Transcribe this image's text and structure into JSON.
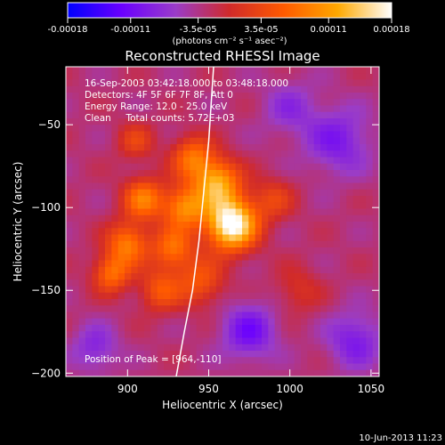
{
  "colorbar": {
    "tick_labels": [
      "-0.00018",
      "-0.00011",
      "-3.5e-05",
      "3.5e-05",
      "0.00011",
      "0.00018"
    ],
    "units_label": "(photons cm⁻² s⁻¹ asec⁻²)",
    "range": [
      -0.00018,
      0.00018
    ],
    "colors": [
      "#0000ff",
      "#6a00ff",
      "#9a3cc8",
      "#d02a2a",
      "#ff5a00",
      "#ffa800",
      "#ffffff"
    ]
  },
  "chart_data": {
    "type": "heatmap",
    "title": "Reconstructed RHESSI Image",
    "xlabel": "Heliocentric X (arcsec)",
    "ylabel": "Heliocentric Y (arcsec)",
    "xlim": [
      862,
      1055
    ],
    "ylim": [
      -202,
      -15
    ],
    "x_ticks": [
      900,
      950,
      1000,
      1050
    ],
    "y_ticks": [
      -50,
      -100,
      -150,
      -200
    ],
    "annotations": [
      "16-Sep-2003 03:42:18.000 to 03:48:18.000",
      "Detectors: 4F 5F 6F 7F 8F, Att 0",
      "Energy Range: 12.0 - 25.0 keV",
      "Clean     Total counts: 5.72E+03"
    ],
    "peak_label": "Position of Peak = [964,-110]",
    "peak": [
      964,
      -110
    ],
    "limb_curve": [
      [
        930,
        -202
      ],
      [
        935,
        -175
      ],
      [
        940,
        -150
      ],
      [
        944,
        -120
      ],
      [
        947,
        -90
      ],
      [
        950,
        -60
      ],
      [
        953,
        -15
      ]
    ],
    "sources": [
      {
        "x": 964,
        "y": -110,
        "amp": 1.0,
        "sigma": 11
      },
      {
        "x": 955,
        "y": -85,
        "amp": 0.65,
        "sigma": 10
      },
      {
        "x": 940,
        "y": -70,
        "amp": 0.45,
        "sigma": 9
      },
      {
        "x": 935,
        "y": -100,
        "amp": 0.55,
        "sigma": 9
      },
      {
        "x": 928,
        "y": -125,
        "amp": 0.45,
        "sigma": 9
      },
      {
        "x": 910,
        "y": -95,
        "amp": 0.5,
        "sigma": 9
      },
      {
        "x": 900,
        "y": -122,
        "amp": 0.5,
        "sigma": 9
      },
      {
        "x": 890,
        "y": -140,
        "amp": 0.45,
        "sigma": 8
      },
      {
        "x": 920,
        "y": -150,
        "amp": 0.35,
        "sigma": 9
      },
      {
        "x": 945,
        "y": -145,
        "amp": 0.35,
        "sigma": 10
      },
      {
        "x": 990,
        "y": -95,
        "amp": 0.25,
        "sigma": 9
      },
      {
        "x": 1005,
        "y": -150,
        "amp": 0.18,
        "sigma": 10
      },
      {
        "x": 905,
        "y": -60,
        "amp": 0.25,
        "sigma": 8
      },
      {
        "x": 975,
        "y": -175,
        "amp": -0.35,
        "sigma": 12
      },
      {
        "x": 1030,
        "y": -60,
        "amp": -0.3,
        "sigma": 14
      },
      {
        "x": 1040,
        "y": -180,
        "amp": -0.3,
        "sigma": 12
      },
      {
        "x": 880,
        "y": -185,
        "amp": -0.25,
        "sigma": 10
      },
      {
        "x": 1000,
        "y": -40,
        "amp": -0.2,
        "sigma": 12
      }
    ]
  },
  "footer": {
    "timestamp": "10-Jun-2013 11:23"
  }
}
